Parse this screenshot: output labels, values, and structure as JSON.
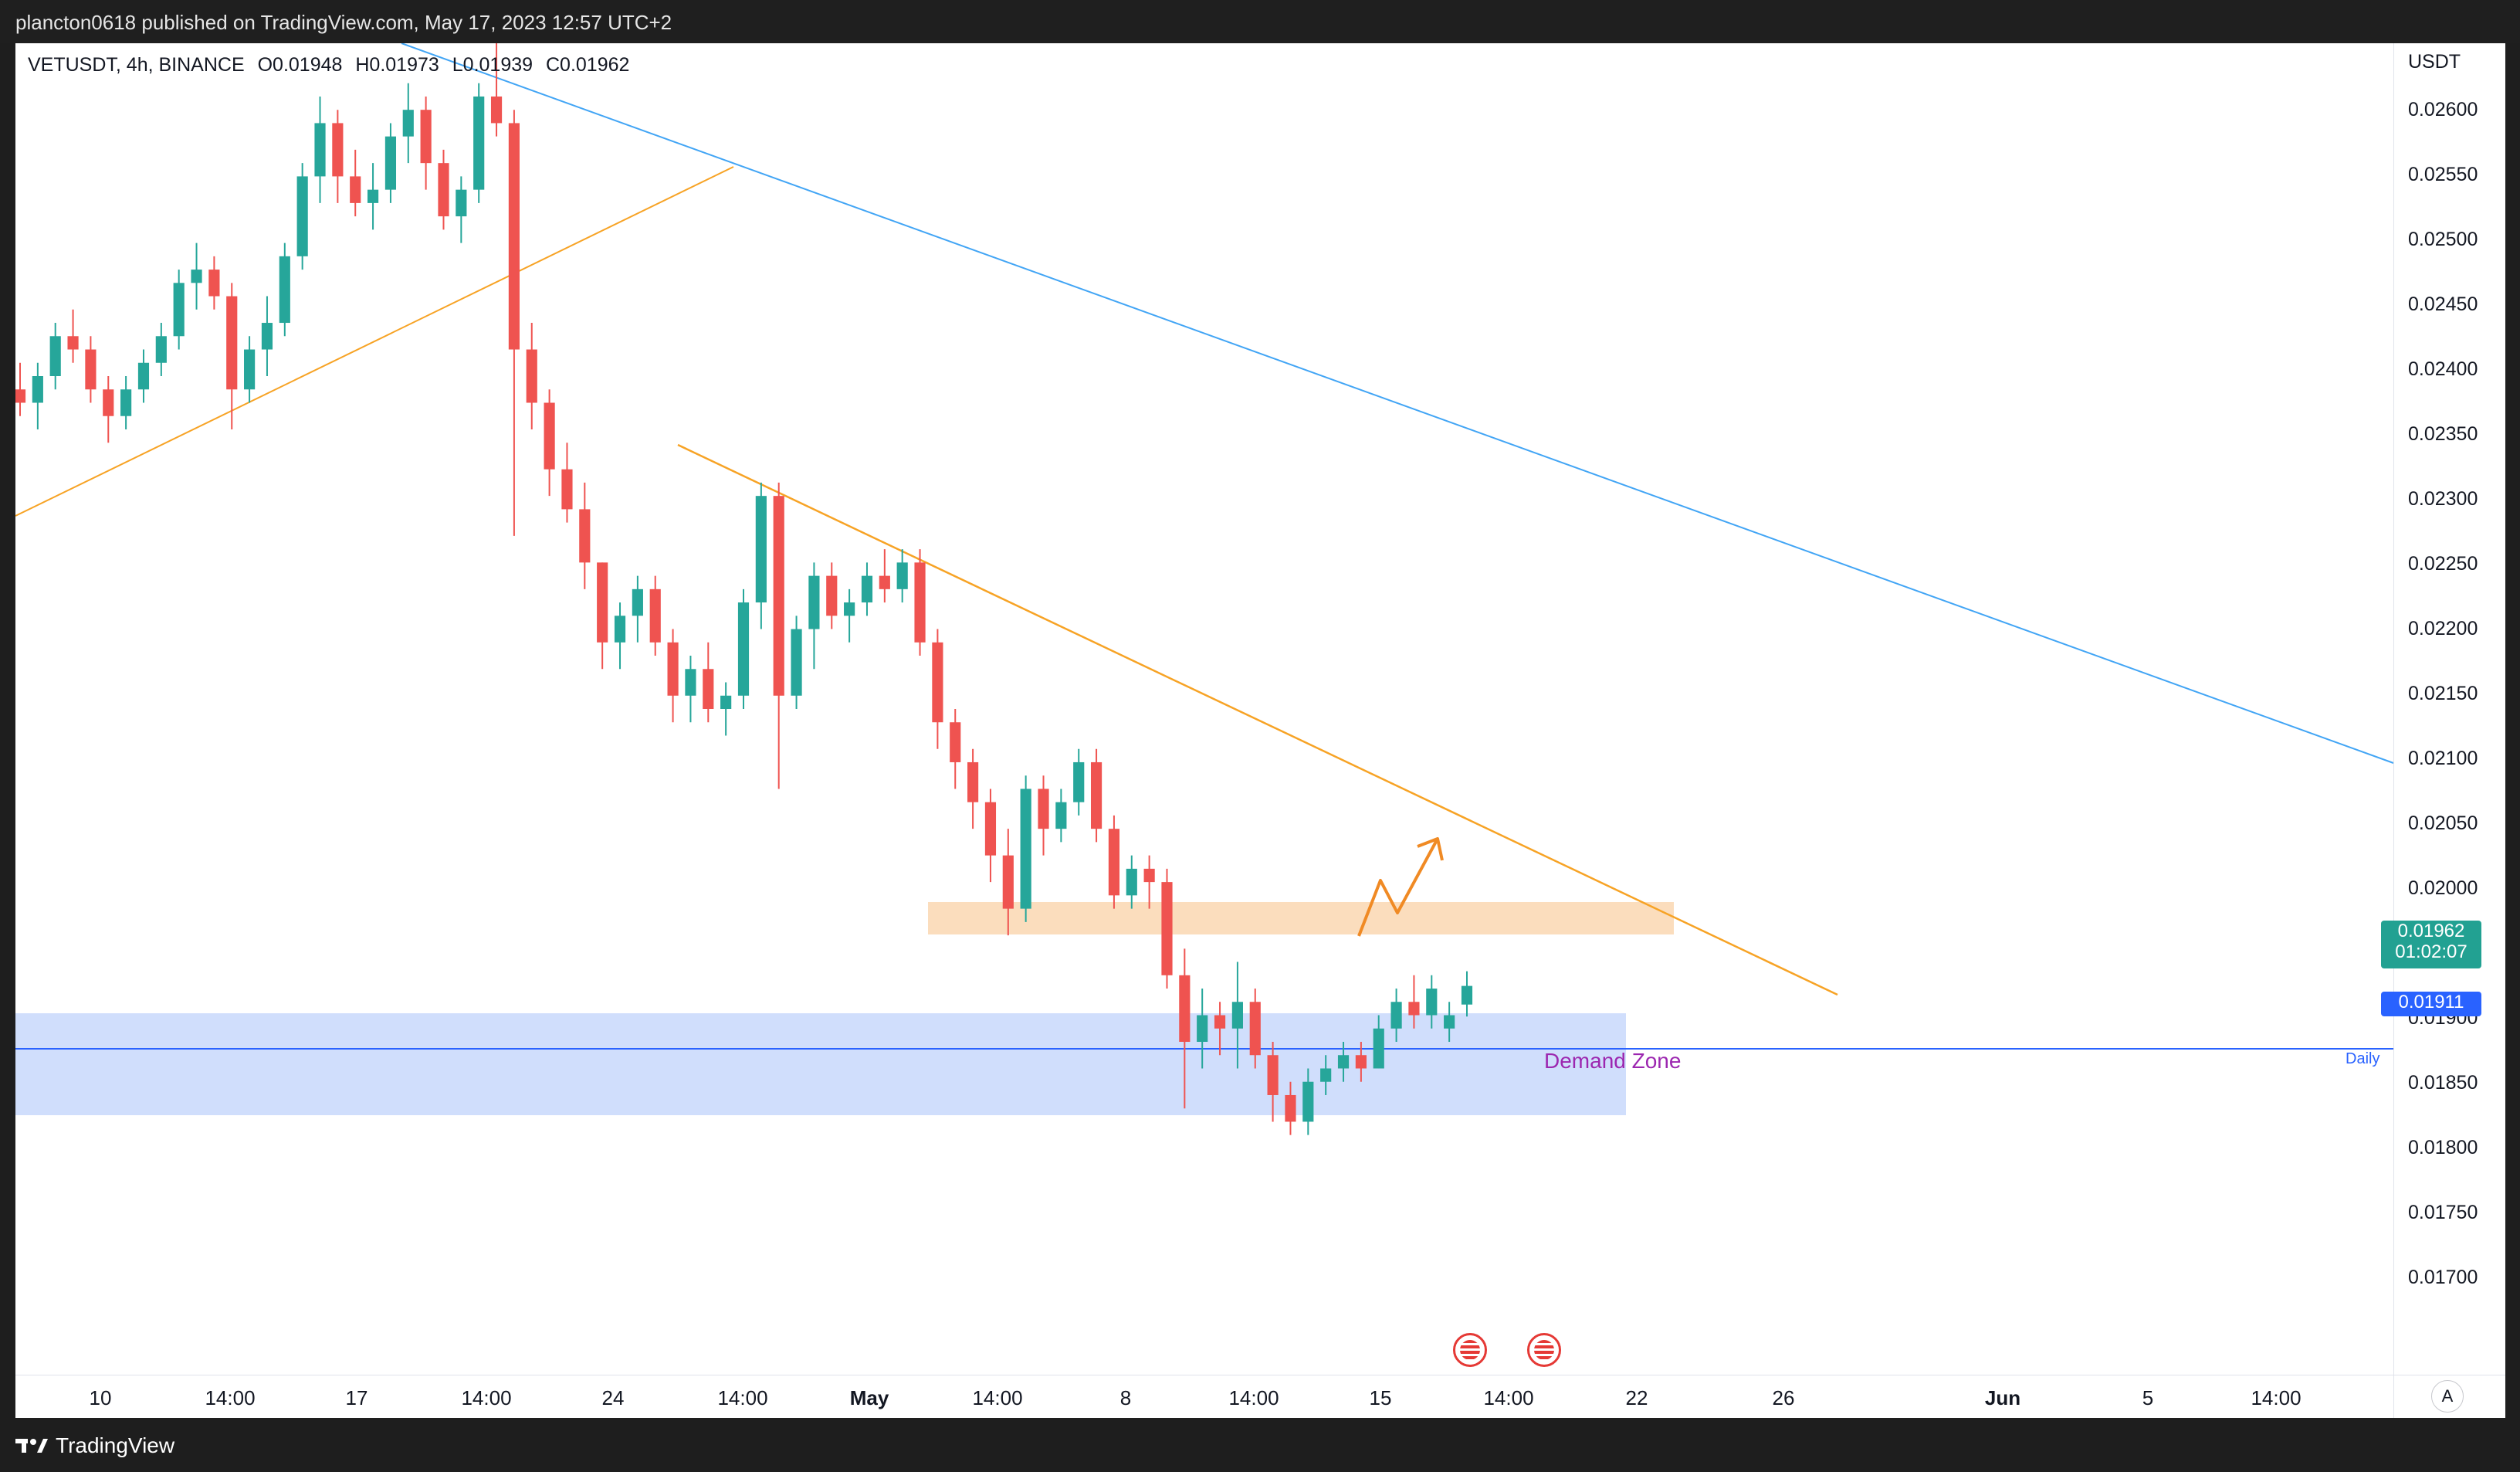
{
  "header": {
    "text": "plancton0618 published on TradingView.com, May 17, 2023 12:57 UTC+2"
  },
  "legend": {
    "symbol": "VETUSDT, 4h, BINANCE",
    "open": "O0.01948",
    "high": "H0.01973",
    "low": "L0.01939",
    "close": "C0.01962"
  },
  "price_axis": {
    "currency": "USDT",
    "ticks": [
      "0.02600",
      "0.02550",
      "0.02500",
      "0.02450",
      "0.02400",
      "0.02350",
      "0.02300",
      "0.02250",
      "0.02200",
      "0.02150",
      "0.02100",
      "0.02050",
      "0.02000",
      "0.01900",
      "0.01850",
      "0.01800",
      "0.01750",
      "0.01700"
    ]
  },
  "time_axis": {
    "ticks": [
      "10",
      "14:00",
      "17",
      "14:00",
      "24",
      "14:00",
      "May",
      "14:00",
      "8",
      "14:00",
      "15",
      "14:00",
      "22",
      "26",
      "Jun",
      "5",
      "14:00"
    ]
  },
  "last_price": {
    "price": "0.01962",
    "countdown": "01:02:07"
  },
  "daily_level": {
    "price": "0.01911",
    "tag": "Daily"
  },
  "annotations": {
    "demand_zone": "Demand Zone"
  },
  "footer": {
    "brand": "TradingView"
  },
  "controls": {
    "auto_scale": "A"
  },
  "colors": {
    "up": "#26a69a",
    "down": "#ef5350",
    "blue_line": "#42a5f5",
    "orange_line": "#f7a325",
    "supply_zone": "#fbd9b6",
    "demand_zone": "#c8d8fb"
  },
  "chart_data": {
    "type": "candlestick",
    "symbol": "VETUSDT",
    "timeframe": "4h",
    "exchange": "BINANCE",
    "ylim": [
      0.0167,
      0.0267
    ],
    "last_close": 0.01962,
    "daily_level": 0.01911,
    "zones": [
      {
        "name": "supply",
        "from": "May 6",
        "to": "May 24",
        "low": 0.01975,
        "high": 0.0199
      },
      {
        "name": "Demand Zone",
        "from": "Apr 8",
        "to": "May 23",
        "low": 0.01885,
        "high": 0.0192
      }
    ],
    "trendlines": [
      {
        "color": "blue",
        "from": [
          "Apr 19",
          0.0267
        ],
        "to": [
          "Jun 9",
          0.021
        ]
      },
      {
        "color": "orange",
        "from": [
          "Apr 8",
          0.0229
        ],
        "to": [
          "Apr 26",
          0.0256
        ]
      },
      {
        "color": "orange",
        "from": [
          "Apr 25",
          0.02345
        ],
        "to": [
          "May 28",
          0.01915
        ]
      }
    ],
    "projection": [
      [
        0.0197,
        0.0201,
        0.01985,
        0.0207
      ]
    ],
    "candles_ohlc": [
      [
        0.0241,
        0.0243,
        0.0239,
        0.024
      ],
      [
        0.024,
        0.0243,
        0.0238,
        0.0242
      ],
      [
        0.0242,
        0.0246,
        0.0241,
        0.0245
      ],
      [
        0.0245,
        0.0247,
        0.0243,
        0.0244
      ],
      [
        0.0244,
        0.0245,
        0.024,
        0.0241
      ],
      [
        0.0241,
        0.0242,
        0.0237,
        0.0239
      ],
      [
        0.0239,
        0.0242,
        0.0238,
        0.0241
      ],
      [
        0.0241,
        0.0244,
        0.024,
        0.0243
      ],
      [
        0.0243,
        0.0246,
        0.0242,
        0.0245
      ],
      [
        0.0245,
        0.025,
        0.0244,
        0.0249
      ],
      [
        0.0249,
        0.0252,
        0.0247,
        0.025
      ],
      [
        0.025,
        0.0251,
        0.0247,
        0.0248
      ],
      [
        0.0248,
        0.0249,
        0.0238,
        0.0241
      ],
      [
        0.0241,
        0.0245,
        0.024,
        0.0244
      ],
      [
        0.0244,
        0.0248,
        0.0242,
        0.0246
      ],
      [
        0.0246,
        0.0252,
        0.0245,
        0.0251
      ],
      [
        0.0251,
        0.0258,
        0.025,
        0.0257
      ],
      [
        0.0257,
        0.0263,
        0.0255,
        0.0261
      ],
      [
        0.0261,
        0.0262,
        0.0255,
        0.0257
      ],
      [
        0.0257,
        0.0259,
        0.0254,
        0.0255
      ],
      [
        0.0255,
        0.0258,
        0.0253,
        0.0256
      ],
      [
        0.0256,
        0.0261,
        0.0255,
        0.026
      ],
      [
        0.026,
        0.0264,
        0.0258,
        0.0262
      ],
      [
        0.0262,
        0.0263,
        0.0256,
        0.0258
      ],
      [
        0.0258,
        0.0259,
        0.0253,
        0.0254
      ],
      [
        0.0254,
        0.0257,
        0.0252,
        0.0256
      ],
      [
        0.0256,
        0.0264,
        0.0255,
        0.0263
      ],
      [
        0.0263,
        0.0267,
        0.026,
        0.0261
      ],
      [
        0.0261,
        0.0262,
        0.023,
        0.0244
      ],
      [
        0.0244,
        0.0246,
        0.0238,
        0.024
      ],
      [
        0.024,
        0.0241,
        0.0233,
        0.0235
      ],
      [
        0.0235,
        0.0237,
        0.0231,
        0.0232
      ],
      [
        0.0232,
        0.0234,
        0.0226,
        0.0228
      ],
      [
        0.0228,
        0.0228,
        0.022,
        0.0222
      ],
      [
        0.0222,
        0.0225,
        0.022,
        0.0224
      ],
      [
        0.0224,
        0.0227,
        0.0222,
        0.0226
      ],
      [
        0.0226,
        0.0227,
        0.0221,
        0.0222
      ],
      [
        0.0222,
        0.0223,
        0.0216,
        0.0218
      ],
      [
        0.0218,
        0.0221,
        0.0216,
        0.022
      ],
      [
        0.022,
        0.0222,
        0.0216,
        0.0217
      ],
      [
        0.0217,
        0.0219,
        0.0215,
        0.0218
      ],
      [
        0.0218,
        0.0226,
        0.0217,
        0.0225
      ],
      [
        0.0225,
        0.0234,
        0.0223,
        0.0233
      ],
      [
        0.0233,
        0.0234,
        0.0211,
        0.0218
      ],
      [
        0.0218,
        0.0224,
        0.0217,
        0.0223
      ],
      [
        0.0223,
        0.0228,
        0.022,
        0.0227
      ],
      [
        0.0227,
        0.0228,
        0.0223,
        0.0224
      ],
      [
        0.0224,
        0.0226,
        0.0222,
        0.0225
      ],
      [
        0.0225,
        0.0228,
        0.0224,
        0.0227
      ],
      [
        0.0227,
        0.0229,
        0.0225,
        0.0226
      ],
      [
        0.0226,
        0.0229,
        0.0225,
        0.0228
      ],
      [
        0.0228,
        0.0229,
        0.0221,
        0.0222
      ],
      [
        0.0222,
        0.0223,
        0.0214,
        0.0216
      ],
      [
        0.0216,
        0.0217,
        0.0211,
        0.0213
      ],
      [
        0.0213,
        0.0214,
        0.0208,
        0.021
      ],
      [
        0.021,
        0.0211,
        0.0204,
        0.0206
      ],
      [
        0.0206,
        0.0208,
        0.02,
        0.0202
      ],
      [
        0.0202,
        0.0212,
        0.0201,
        0.0211
      ],
      [
        0.0211,
        0.0212,
        0.0206,
        0.0208
      ],
      [
        0.0208,
        0.0211,
        0.0207,
        0.021
      ],
      [
        0.021,
        0.0214,
        0.0209,
        0.0213
      ],
      [
        0.0213,
        0.0214,
        0.0207,
        0.0208
      ],
      [
        0.0208,
        0.0209,
        0.0202,
        0.0203
      ],
      [
        0.0203,
        0.0206,
        0.0202,
        0.0205
      ],
      [
        0.0205,
        0.0206,
        0.0202,
        0.0204
      ],
      [
        0.0204,
        0.0205,
        0.0196,
        0.0197
      ],
      [
        0.0197,
        0.0199,
        0.0187,
        0.0192
      ],
      [
        0.0192,
        0.0196,
        0.019,
        0.0194
      ],
      [
        0.0194,
        0.0195,
        0.0191,
        0.0193
      ],
      [
        0.0193,
        0.0198,
        0.019,
        0.0195
      ],
      [
        0.0195,
        0.0196,
        0.019,
        0.0191
      ],
      [
        0.0191,
        0.0192,
        0.0186,
        0.0188
      ],
      [
        0.0188,
        0.0189,
        0.0185,
        0.0186
      ],
      [
        0.0186,
        0.019,
        0.0185,
        0.0189
      ],
      [
        0.0189,
        0.0191,
        0.0188,
        0.019
      ],
      [
        0.019,
        0.0192,
        0.0189,
        0.0191
      ],
      [
        0.0191,
        0.0192,
        0.0189,
        0.019
      ],
      [
        0.019,
        0.0194,
        0.019,
        0.0193
      ],
      [
        0.0193,
        0.0196,
        0.0192,
        0.0195
      ],
      [
        0.0195,
        0.0197,
        0.0193,
        0.0194
      ],
      [
        0.0194,
        0.0197,
        0.0193,
        0.0196
      ],
      [
        0.0193,
        0.0195,
        0.0192,
        0.0194
      ],
      [
        0.01948,
        0.01973,
        0.01939,
        0.01962
      ]
    ]
  }
}
